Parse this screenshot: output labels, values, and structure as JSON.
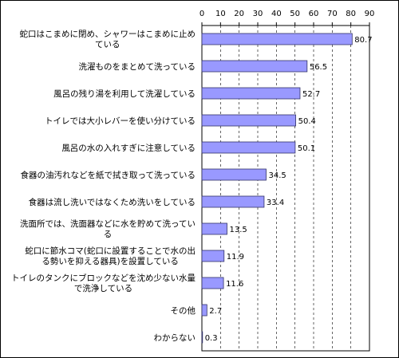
{
  "chart_data": {
    "type": "bar",
    "orientation": "horizontal",
    "categories": [
      [
        "蛇口はこまめに閉め、シャワーはこまめに止め",
        "ている"
      ],
      [
        "洗濯ものをまとめて洗っている"
      ],
      [
        "風呂の残り湯を利用して洗濯している"
      ],
      [
        "トイレでは大小レバーを使い分けている"
      ],
      [
        "風呂の水の入れすぎに注意している"
      ],
      [
        "食器の油汚れなどを紙で拭き取って洗っている"
      ],
      [
        "食器は流し洗いではなくため洗いをしている"
      ],
      [
        "洗面所では、洗面器などに水を貯めて洗ってい",
        "る"
      ],
      [
        "蛇口に節水コマ(蛇口に設置することで水の出",
        "る勢いを抑える器具)を設置している"
      ],
      [
        "トイレのタンクにブロックなどを沈め少ない水量",
        "で洗浄している"
      ],
      [
        "その他"
      ],
      [
        "わからない"
      ]
    ],
    "values": [
      80.7,
      56.5,
      52.7,
      50.4,
      50.1,
      34.5,
      33.4,
      13.5,
      11.9,
      11.6,
      2.7,
      0.3
    ],
    "value_labels": [
      "80.7",
      "56.5",
      "52.7",
      "50.4",
      "50.1",
      "34.5",
      "33.4",
      "13.5",
      "11.9",
      "11.6",
      "2.7",
      "0.3"
    ],
    "xlim": [
      0,
      90
    ],
    "xticks": [
      0,
      10,
      20,
      30,
      40,
      50,
      60,
      70,
      80,
      90
    ],
    "grid": "vertical-dashed",
    "bar_color": "#9999ff",
    "bar_edge_color": "#333366",
    "title": "",
    "xlabel": "",
    "ylabel": ""
  }
}
